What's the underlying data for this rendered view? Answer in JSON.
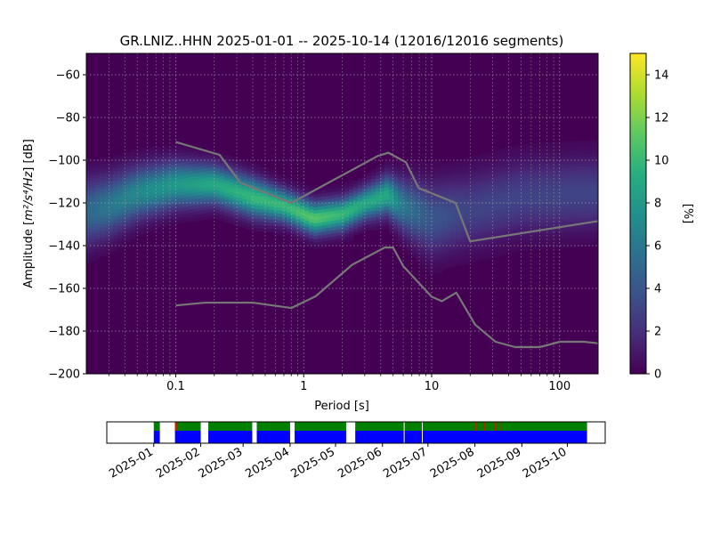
{
  "chart_data": [
    {
      "type": "heatmap",
      "title": "GR.LNIZ..HHN   2025-01-01 -- 2025-10-14  (12016/12016 segments)",
      "xlabel": "Period [s]",
      "ylabel_parts": {
        "prefix": "Amplitude [",
        "unit": "m²/s⁴/Hz",
        "suffix": "] [dB]"
      },
      "xscale": "log",
      "xlim": [
        0.02,
        200
      ],
      "ylim": [
        -200,
        -50
      ],
      "x_ticks": [
        {
          "value": 0.1,
          "label": "0.1"
        },
        {
          "value": 1,
          "label": "1"
        },
        {
          "value": 10,
          "label": "10"
        },
        {
          "value": 100,
          "label": "100"
        }
      ],
      "y_ticks": [
        {
          "value": -60,
          "label": "−60"
        },
        {
          "value": -80,
          "label": "−80"
        },
        {
          "value": -100,
          "label": "−100"
        },
        {
          "value": -120,
          "label": "−120"
        },
        {
          "value": -140,
          "label": "−140"
        },
        {
          "value": -160,
          "label": "−160"
        },
        {
          "value": -180,
          "label": "−180"
        },
        {
          "value": -200,
          "label": "−200"
        }
      ],
      "grid": true,
      "colormap": "viridis",
      "colorbar": {
        "label": "[%]",
        "range": [
          0,
          15
        ],
        "ticks": [
          {
            "value": 0,
            "label": "0"
          },
          {
            "value": 2,
            "label": "2"
          },
          {
            "value": 4,
            "label": "4"
          },
          {
            "value": 6,
            "label": "6"
          },
          {
            "value": 8,
            "label": "8"
          },
          {
            "value": 10,
            "label": "10"
          },
          {
            "value": 12,
            "label": "12"
          },
          {
            "value": 14,
            "label": "14"
          }
        ]
      },
      "density_ridge": {
        "description_free": true,
        "points": [
          {
            "period": 0.02,
            "center": -125,
            "spread": 10,
            "peak": 5
          },
          {
            "period": 0.03,
            "center": -122,
            "spread": 9,
            "peak": 6
          },
          {
            "period": 0.05,
            "center": -116,
            "spread": 8,
            "peak": 7
          },
          {
            "period": 0.1,
            "center": -112,
            "spread": 7,
            "peak": 8
          },
          {
            "period": 0.2,
            "center": -112,
            "spread": 6,
            "peak": 9
          },
          {
            "period": 0.4,
            "center": -118,
            "spread": 6,
            "peak": 10
          },
          {
            "period": 0.7,
            "center": -122,
            "spread": 5,
            "peak": 10
          },
          {
            "period": 1.2,
            "center": -128,
            "spread": 5,
            "peak": 11
          },
          {
            "period": 2,
            "center": -126,
            "spread": 5,
            "peak": 10
          },
          {
            "period": 3,
            "center": -121,
            "spread": 5,
            "peak": 9
          },
          {
            "period": 4.5,
            "center": -117,
            "spread": 6,
            "peak": 9
          },
          {
            "period": 6,
            "center": -122,
            "spread": 8,
            "peak": 6
          },
          {
            "period": 10,
            "center": -128,
            "spread": 11,
            "peak": 4
          },
          {
            "period": 20,
            "center": -124,
            "spread": 11,
            "peak": 3
          },
          {
            "period": 50,
            "center": -118,
            "spread": 11,
            "peak": 3
          },
          {
            "period": 200,
            "center": -116,
            "spread": 11,
            "peak": 3
          }
        ]
      },
      "series": [
        {
          "color": "#777777",
          "points": [
            [
              0.1,
              -91.5
            ],
            [
              0.22,
              -97.5
            ],
            [
              0.32,
              -110.5
            ],
            [
              0.8,
              -120.0
            ],
            [
              3.8,
              -98.0
            ],
            [
              4.6,
              -96.5
            ],
            [
              6.3,
              -101.0
            ],
            [
              7.9,
              -113.0
            ],
            [
              15.4,
              -120.0
            ],
            [
              20.0,
              -138.0
            ],
            [
              200,
              -128.5
            ]
          ]
        },
        {
          "color": "#777777",
          "points": [
            [
              0.1,
              -168.0
            ],
            [
              0.17,
              -166.7
            ],
            [
              0.4,
              -166.7
            ],
            [
              0.8,
              -169.2
            ],
            [
              1.24,
              -163.7
            ],
            [
              2.4,
              -148.9
            ],
            [
              4.3,
              -140.9
            ],
            [
              5.0,
              -140.9
            ],
            [
              6.0,
              -149.6
            ],
            [
              10.0,
              -163.9
            ],
            [
              12.0,
              -166.0
            ],
            [
              15.6,
              -162.0
            ],
            [
              21.9,
              -177.0
            ],
            [
              31.6,
              -185.0
            ],
            [
              45.0,
              -187.5
            ],
            [
              70.0,
              -187.5
            ],
            [
              101,
              -185.0
            ],
            [
              154,
              -185.0
            ],
            [
              200,
              -185.7
            ]
          ]
        }
      ]
    },
    {
      "type": "timeline",
      "x_ticks": [
        "2025-01",
        "2025-02",
        "2025-03",
        "2025-04",
        "2025-05",
        "2025-06",
        "2025-07",
        "2025-08",
        "2025-09",
        "2025-10"
      ],
      "range": [
        "2024-12-01",
        "2025-10-26"
      ],
      "colors": {
        "green": "#008000",
        "blue": "#0000ff",
        "red": "#ff0000"
      },
      "coverage_gaps": [
        [
          "2024-12-01",
          "2025-01-01"
        ],
        [
          "2025-01-05",
          "2025-01-15"
        ],
        [
          "2025-02-01",
          "2025-02-06"
        ],
        [
          "2025-03-07",
          "2025-03-10"
        ],
        [
          "2025-04-01",
          "2025-04-04"
        ],
        [
          "2025-05-08",
          "2025-05-14"
        ],
        [
          "2025-10-14",
          "2025-10-26"
        ]
      ],
      "top_row": "green",
      "bottom_row": "blue"
    }
  ]
}
